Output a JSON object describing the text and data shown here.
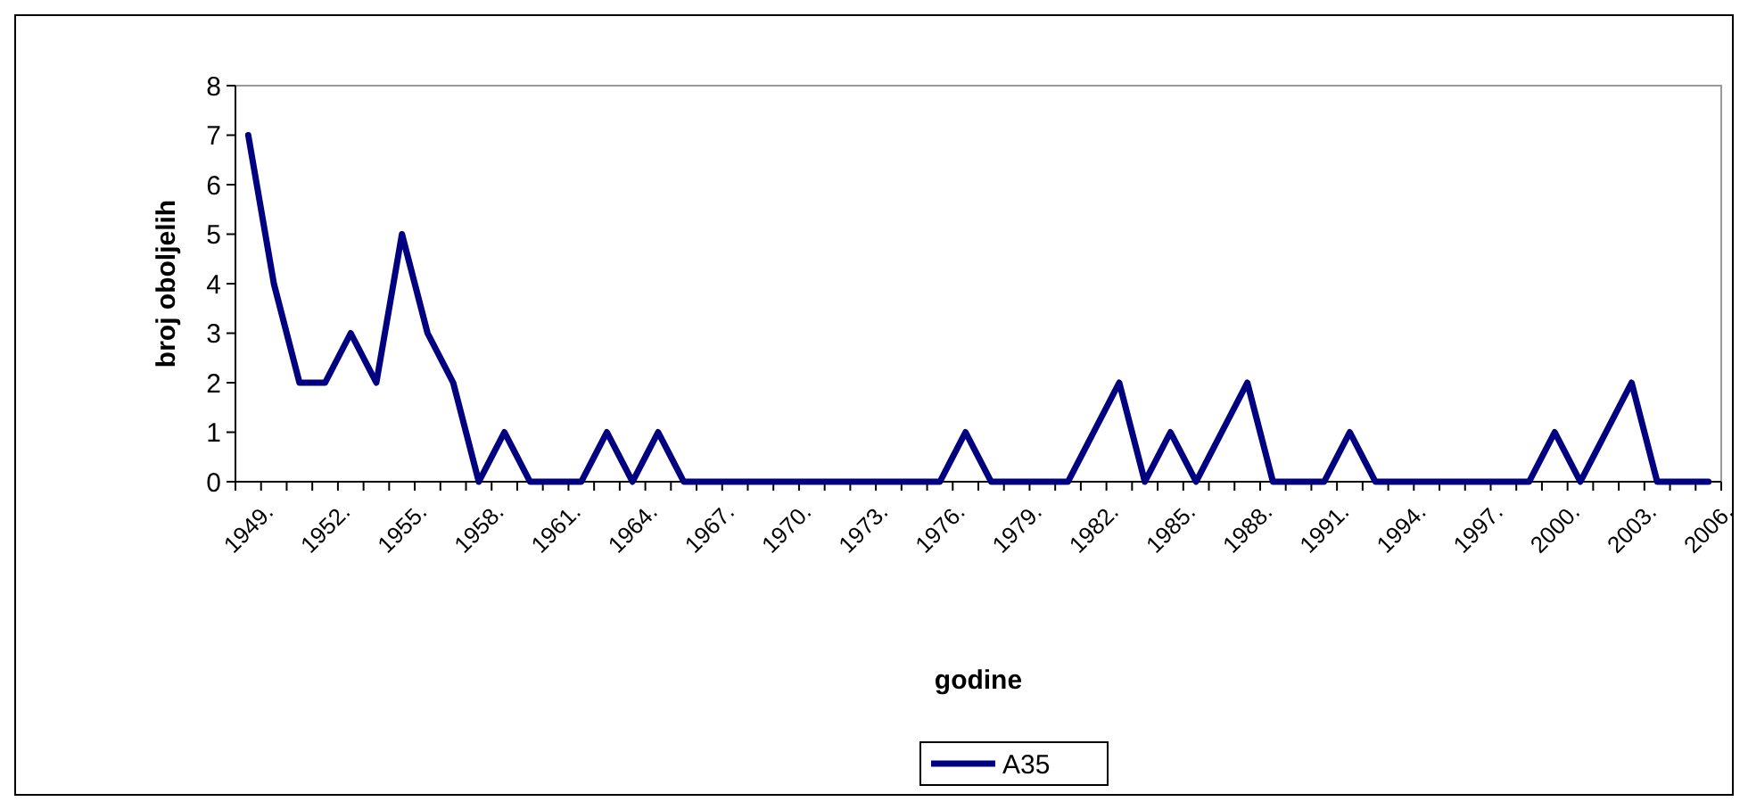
{
  "chart_data": {
    "type": "line",
    "xlabel": "godine",
    "ylabel": "broj oboljelih",
    "categories": [
      "1949.",
      null,
      null,
      "1952.",
      null,
      null,
      "1955.",
      null,
      null,
      "1958.",
      null,
      null,
      "1961.",
      null,
      null,
      "1964.",
      null,
      null,
      "1967.",
      null,
      null,
      "1970.",
      null,
      null,
      "1973.",
      null,
      null,
      "1976.",
      null,
      null,
      "1979.",
      null,
      null,
      "1982.",
      null,
      null,
      "1985.",
      null,
      null,
      "1988.",
      null,
      null,
      "1991.",
      null,
      null,
      "1994.",
      null,
      null,
      "1997.",
      null,
      null,
      "2000.",
      null,
      null,
      "2003.",
      null,
      null,
      "2006."
    ],
    "series": [
      {
        "name": "A35",
        "color": "#000080",
        "values": [
          7,
          4,
          2,
          2,
          3,
          2,
          5,
          3,
          2,
          0,
          1,
          0,
          0,
          0,
          1,
          0,
          1,
          0,
          0,
          0,
          0,
          0,
          0,
          0,
          0,
          0,
          0,
          0,
          1,
          0,
          0,
          0,
          0,
          1,
          2,
          0,
          1,
          0,
          1,
          2,
          0,
          0,
          0,
          1,
          0,
          0,
          0,
          0,
          0,
          0,
          0,
          1,
          0,
          1,
          2,
          0,
          0,
          0
        ]
      }
    ],
    "ylim": [
      0,
      8
    ],
    "yticks": [
      0,
      1,
      2,
      3,
      4,
      5,
      6,
      7,
      8
    ],
    "grid": false,
    "legend": "bottom",
    "marker": "none",
    "line_style": "solid"
  }
}
